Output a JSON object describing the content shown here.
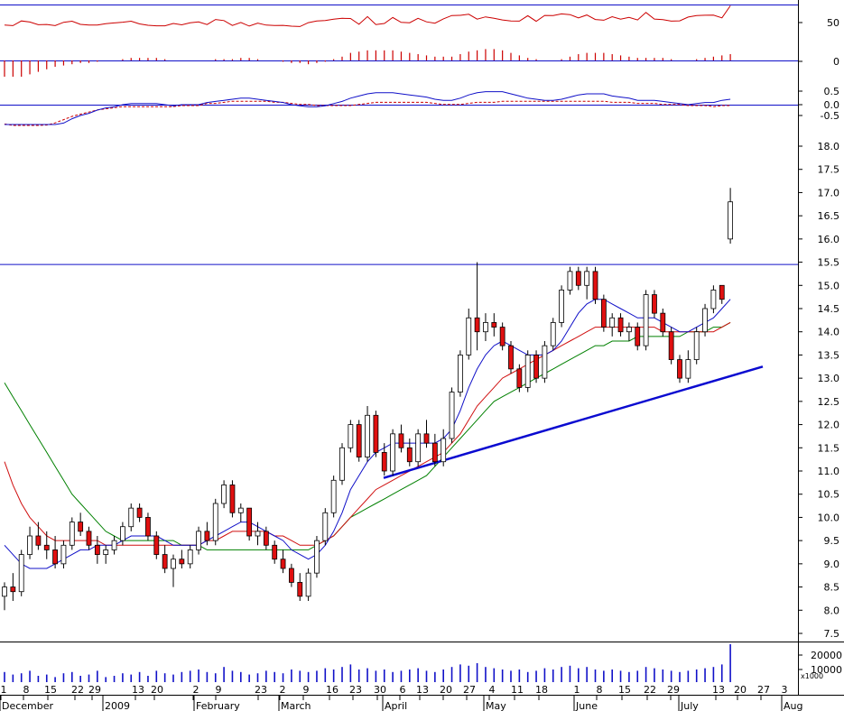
{
  "chart_data": {
    "type": "candlestick",
    "colors": {
      "up_fill": "#ffffff",
      "down_fill": "#e01010",
      "candle_outline": "#000000",
      "ma_short": "#1010c8",
      "ma_mid": "#d01010",
      "ma_long": "#008000",
      "trendline": "#0a0ad0",
      "resistance": "#1010c8",
      "rsi": "#cc0000",
      "macd_hist": "#cc0000",
      "macd_line": "#1010c8",
      "macd_signal": "#cc0000",
      "volume": "#1010c8"
    },
    "x_tick_labels": [
      {
        "label": "1",
        "row": "day"
      },
      {
        "label": "8",
        "row": "day"
      },
      {
        "label": "15",
        "row": "day"
      },
      {
        "label": "22",
        "row": "day"
      },
      {
        "label": "29",
        "row": "day"
      },
      {
        "label": "13",
        "row": "day"
      },
      {
        "label": "20",
        "row": "day"
      },
      {
        "label": "2",
        "row": "day"
      },
      {
        "label": "9",
        "row": "day"
      },
      {
        "label": "23",
        "row": "day"
      },
      {
        "label": "2",
        "row": "day"
      },
      {
        "label": "9",
        "row": "day"
      },
      {
        "label": "16",
        "row": "day"
      },
      {
        "label": "23",
        "row": "day"
      },
      {
        "label": "30",
        "row": "day"
      },
      {
        "label": "6",
        "row": "day"
      },
      {
        "label": "13",
        "row": "day"
      },
      {
        "label": "20",
        "row": "day"
      },
      {
        "label": "27",
        "row": "day"
      },
      {
        "label": "4",
        "row": "day"
      },
      {
        "label": "11",
        "row": "day"
      },
      {
        "label": "18",
        "row": "day"
      },
      {
        "label": "1",
        "row": "day"
      },
      {
        "label": "8",
        "row": "day"
      },
      {
        "label": "15",
        "row": "day"
      },
      {
        "label": "22",
        "row": "day"
      },
      {
        "label": "29",
        "row": "day"
      },
      {
        "label": "13",
        "row": "day"
      },
      {
        "label": "20",
        "row": "day"
      },
      {
        "label": "27",
        "row": "day"
      },
      {
        "label": "3",
        "row": "day"
      }
    ],
    "month_labels": [
      "December",
      "2009",
      "February",
      "March",
      "April",
      "May",
      "June",
      "July",
      "Aug"
    ],
    "price_ticks": [
      "18.0",
      "17.5",
      "17.0",
      "16.5",
      "16.0",
      "15.5",
      "15.0",
      "14.5",
      "14.0",
      "13.5",
      "13.0",
      "12.5",
      "12.0",
      "11.5",
      "11.0",
      "10.5",
      "10.0",
      "9.5",
      "9.0",
      "8.5",
      "8.0",
      "7.5"
    ],
    "price_ylim": [
      7.3,
      18.3
    ],
    "rsi_ticks": [
      "50",
      "0"
    ],
    "macd_ticks": [
      "0.5",
      "0.0",
      "-0.5"
    ],
    "volume_ticks": [
      "20000",
      "10000"
    ],
    "volume_unit": "x1000",
    "resistance_level": 15.45,
    "trendline": {
      "from": {
        "day": 0,
        "price": 10.85
      },
      "to": {
        "day": 87,
        "price": 13.25
      }
    },
    "candles": [
      {
        "o": 8.3,
        "h": 8.6,
        "l": 8.0,
        "c": 8.5
      },
      {
        "o": 8.5,
        "h": 8.8,
        "l": 8.2,
        "c": 8.4
      },
      {
        "o": 8.4,
        "h": 9.3,
        "l": 8.3,
        "c": 9.2
      },
      {
        "o": 9.2,
        "h": 9.8,
        "l": 9.1,
        "c": 9.6
      },
      {
        "o": 9.6,
        "h": 9.9,
        "l": 9.3,
        "c": 9.4
      },
      {
        "o": 9.4,
        "h": 9.7,
        "l": 9.1,
        "c": 9.3
      },
      {
        "o": 9.3,
        "h": 9.6,
        "l": 8.9,
        "c": 9.0
      },
      {
        "o": 9.0,
        "h": 9.5,
        "l": 8.9,
        "c": 9.4
      },
      {
        "o": 9.4,
        "h": 10.0,
        "l": 9.3,
        "c": 9.9
      },
      {
        "o": 9.9,
        "h": 10.1,
        "l": 9.6,
        "c": 9.7
      },
      {
        "o": 9.7,
        "h": 9.8,
        "l": 9.3,
        "c": 9.4
      },
      {
        "o": 9.4,
        "h": 9.6,
        "l": 9.0,
        "c": 9.2
      },
      {
        "o": 9.2,
        "h": 9.4,
        "l": 9.0,
        "c": 9.3
      },
      {
        "o": 9.3,
        "h": 9.6,
        "l": 9.2,
        "c": 9.5
      },
      {
        "o": 9.5,
        "h": 9.9,
        "l": 9.4,
        "c": 9.8
      },
      {
        "o": 9.8,
        "h": 10.3,
        "l": 9.7,
        "c": 10.2
      },
      {
        "o": 10.2,
        "h": 10.3,
        "l": 9.9,
        "c": 10.0
      },
      {
        "o": 10.0,
        "h": 10.1,
        "l": 9.5,
        "c": 9.6
      },
      {
        "o": 9.6,
        "h": 9.7,
        "l": 9.1,
        "c": 9.2
      },
      {
        "o": 9.2,
        "h": 9.4,
        "l": 8.8,
        "c": 8.9
      },
      {
        "o": 8.9,
        "h": 9.2,
        "l": 8.5,
        "c": 9.1
      },
      {
        "o": 9.1,
        "h": 9.3,
        "l": 8.9,
        "c": 9.0
      },
      {
        "o": 9.0,
        "h": 9.4,
        "l": 8.9,
        "c": 9.3
      },
      {
        "o": 9.3,
        "h": 9.8,
        "l": 9.2,
        "c": 9.7
      },
      {
        "o": 9.7,
        "h": 9.9,
        "l": 9.4,
        "c": 9.5
      },
      {
        "o": 9.5,
        "h": 10.4,
        "l": 9.4,
        "c": 10.3
      },
      {
        "o": 10.3,
        "h": 10.8,
        "l": 10.2,
        "c": 10.7
      },
      {
        "o": 10.7,
        "h": 10.8,
        "l": 10.0,
        "c": 10.1
      },
      {
        "o": 10.1,
        "h": 10.3,
        "l": 9.9,
        "c": 10.2
      },
      {
        "o": 10.2,
        "h": 10.2,
        "l": 9.5,
        "c": 9.6
      },
      {
        "o": 9.6,
        "h": 9.9,
        "l": 9.4,
        "c": 9.7
      },
      {
        "o": 9.7,
        "h": 9.8,
        "l": 9.3,
        "c": 9.4
      },
      {
        "o": 9.4,
        "h": 9.5,
        "l": 9.0,
        "c": 9.1
      },
      {
        "o": 9.1,
        "h": 9.3,
        "l": 8.8,
        "c": 8.9
      },
      {
        "o": 8.9,
        "h": 9.0,
        "l": 8.5,
        "c": 8.6
      },
      {
        "o": 8.6,
        "h": 8.8,
        "l": 8.2,
        "c": 8.3
      },
      {
        "o": 8.3,
        "h": 8.9,
        "l": 8.2,
        "c": 8.8
      },
      {
        "o": 8.8,
        "h": 9.6,
        "l": 8.7,
        "c": 9.5
      },
      {
        "o": 9.5,
        "h": 10.2,
        "l": 9.4,
        "c": 10.1
      },
      {
        "o": 10.1,
        "h": 10.9,
        "l": 10.0,
        "c": 10.8
      },
      {
        "o": 10.8,
        "h": 11.6,
        "l": 10.7,
        "c": 11.5
      },
      {
        "o": 11.5,
        "h": 12.1,
        "l": 11.4,
        "c": 12.0
      },
      {
        "o": 12.0,
        "h": 12.1,
        "l": 11.2,
        "c": 11.3
      },
      {
        "o": 11.3,
        "h": 12.4,
        "l": 11.2,
        "c": 12.2
      },
      {
        "o": 12.2,
        "h": 12.3,
        "l": 11.3,
        "c": 11.4
      },
      {
        "o": 11.4,
        "h": 11.6,
        "l": 10.9,
        "c": 11.0
      },
      {
        "o": 11.0,
        "h": 11.9,
        "l": 10.9,
        "c": 11.8
      },
      {
        "o": 11.8,
        "h": 12.0,
        "l": 11.4,
        "c": 11.5
      },
      {
        "o": 11.5,
        "h": 11.7,
        "l": 11.1,
        "c": 11.2
      },
      {
        "o": 11.2,
        "h": 11.9,
        "l": 11.1,
        "c": 11.8
      },
      {
        "o": 11.8,
        "h": 12.1,
        "l": 11.5,
        "c": 11.6
      },
      {
        "o": 11.6,
        "h": 11.8,
        "l": 11.1,
        "c": 11.2
      },
      {
        "o": 11.2,
        "h": 11.9,
        "l": 11.1,
        "c": 11.7
      },
      {
        "o": 11.7,
        "h": 12.8,
        "l": 11.6,
        "c": 12.7
      },
      {
        "o": 12.7,
        "h": 13.6,
        "l": 12.6,
        "c": 13.5
      },
      {
        "o": 13.5,
        "h": 14.5,
        "l": 13.4,
        "c": 14.3
      },
      {
        "o": 14.3,
        "h": 15.5,
        "l": 13.6,
        "c": 14.0
      },
      {
        "o": 14.0,
        "h": 14.4,
        "l": 13.8,
        "c": 14.2
      },
      {
        "o": 14.2,
        "h": 14.4,
        "l": 13.9,
        "c": 14.1
      },
      {
        "o": 14.1,
        "h": 14.2,
        "l": 13.6,
        "c": 13.7
      },
      {
        "o": 13.7,
        "h": 13.8,
        "l": 13.1,
        "c": 13.2
      },
      {
        "o": 13.2,
        "h": 13.3,
        "l": 12.7,
        "c": 12.8
      },
      {
        "o": 12.8,
        "h": 13.6,
        "l": 12.7,
        "c": 13.5
      },
      {
        "o": 13.5,
        "h": 13.6,
        "l": 12.9,
        "c": 13.0
      },
      {
        "o": 13.0,
        "h": 13.8,
        "l": 12.9,
        "c": 13.7
      },
      {
        "o": 13.7,
        "h": 14.3,
        "l": 13.6,
        "c": 14.2
      },
      {
        "o": 14.2,
        "h": 15.0,
        "l": 14.1,
        "c": 14.9
      },
      {
        "o": 14.9,
        "h": 15.4,
        "l": 14.8,
        "c": 15.3
      },
      {
        "o": 15.3,
        "h": 15.4,
        "l": 14.9,
        "c": 15.0
      },
      {
        "o": 15.0,
        "h": 15.4,
        "l": 14.7,
        "c": 15.3
      },
      {
        "o": 15.3,
        "h": 15.4,
        "l": 14.6,
        "c": 14.7
      },
      {
        "o": 14.7,
        "h": 14.8,
        "l": 14.0,
        "c": 14.1
      },
      {
        "o": 14.1,
        "h": 14.4,
        "l": 13.9,
        "c": 14.3
      },
      {
        "o": 14.3,
        "h": 14.4,
        "l": 13.9,
        "c": 14.0
      },
      {
        "o": 14.0,
        "h": 14.2,
        "l": 13.8,
        "c": 14.1
      },
      {
        "o": 14.1,
        "h": 14.2,
        "l": 13.6,
        "c": 13.7
      },
      {
        "o": 13.7,
        "h": 14.9,
        "l": 13.6,
        "c": 14.8
      },
      {
        "o": 14.8,
        "h": 14.9,
        "l": 14.3,
        "c": 14.4
      },
      {
        "o": 14.4,
        "h": 14.5,
        "l": 13.9,
        "c": 14.0
      },
      {
        "o": 14.0,
        "h": 14.1,
        "l": 13.3,
        "c": 13.4
      },
      {
        "o": 13.4,
        "h": 13.5,
        "l": 12.9,
        "c": 13.0
      },
      {
        "o": 13.0,
        "h": 13.6,
        "l": 12.9,
        "c": 13.4
      },
      {
        "o": 13.4,
        "h": 14.1,
        "l": 13.3,
        "c": 14.0
      },
      {
        "o": 14.0,
        "h": 14.6,
        "l": 13.9,
        "c": 14.5
      },
      {
        "o": 14.5,
        "h": 15.0,
        "l": 14.4,
        "c": 14.9
      },
      {
        "o": 15.0,
        "h": 15.0,
        "l": 14.6,
        "c": 14.7
      },
      {
        "o": 16.0,
        "h": 17.1,
        "l": 15.9,
        "c": 16.8
      }
    ],
    "ma_short": [
      9.4,
      9.2,
      9.0,
      8.9,
      8.9,
      8.9,
      9.0,
      9.1,
      9.2,
      9.3,
      9.3,
      9.4,
      9.4,
      9.4,
      9.5,
      9.6,
      9.6,
      9.6,
      9.6,
      9.5,
      9.4,
      9.4,
      9.4,
      9.4,
      9.5,
      9.6,
      9.7,
      9.8,
      9.9,
      9.9,
      9.8,
      9.7,
      9.6,
      9.5,
      9.3,
      9.2,
      9.1,
      9.2,
      9.4,
      9.7,
      10.1,
      10.6,
      10.9,
      11.2,
      11.4,
      11.5,
      11.6,
      11.6,
      11.6,
      11.6,
      11.6,
      11.6,
      11.7,
      11.9,
      12.3,
      12.8,
      13.2,
      13.5,
      13.7,
      13.8,
      13.7,
      13.6,
      13.5,
      13.5,
      13.5,
      13.6,
      13.8,
      14.1,
      14.4,
      14.6,
      14.7,
      14.7,
      14.6,
      14.5,
      14.4,
      14.3,
      14.3,
      14.3,
      14.2,
      14.1,
      14.0,
      14.0,
      14.1,
      14.2,
      14.3,
      14.5,
      14.7
    ],
    "ma_mid": [
      11.2,
      10.7,
      10.3,
      10.0,
      9.8,
      9.6,
      9.5,
      9.5,
      9.5,
      9.5,
      9.5,
      9.5,
      9.4,
      9.4,
      9.4,
      9.4,
      9.4,
      9.4,
      9.4,
      9.4,
      9.4,
      9.4,
      9.4,
      9.4,
      9.5,
      9.5,
      9.6,
      9.7,
      9.7,
      9.7,
      9.7,
      9.7,
      9.6,
      9.6,
      9.5,
      9.4,
      9.4,
      9.4,
      9.5,
      9.6,
      9.8,
      10.0,
      10.2,
      10.4,
      10.6,
      10.7,
      10.8,
      10.9,
      11.0,
      11.1,
      11.2,
      11.3,
      11.4,
      11.6,
      11.8,
      12.1,
      12.4,
      12.6,
      12.8,
      13.0,
      13.1,
      13.2,
      13.3,
      13.4,
      13.5,
      13.6,
      13.7,
      13.8,
      13.9,
      14.0,
      14.1,
      14.1,
      14.1,
      14.1,
      14.1,
      14.1,
      14.1,
      14.1,
      14.0,
      14.0,
      14.0,
      14.0,
      14.0,
      14.0,
      14.0,
      14.1,
      14.2
    ],
    "ma_long": [
      12.9,
      12.6,
      12.3,
      12.0,
      11.7,
      11.4,
      11.1,
      10.8,
      10.5,
      10.3,
      10.1,
      9.9,
      9.7,
      9.6,
      9.5,
      9.5,
      9.5,
      9.5,
      9.5,
      9.5,
      9.5,
      9.4,
      9.4,
      9.4,
      9.3,
      9.3,
      9.3,
      9.3,
      9.3,
      9.3,
      9.3,
      9.3,
      9.3,
      9.3,
      9.3,
      9.3,
      9.3,
      9.4,
      9.5,
      9.6,
      9.8,
      10.0,
      10.1,
      10.2,
      10.3,
      10.4,
      10.5,
      10.6,
      10.7,
      10.8,
      10.9,
      11.1,
      11.3,
      11.5,
      11.7,
      11.9,
      12.1,
      12.3,
      12.5,
      12.6,
      12.7,
      12.8,
      12.9,
      13.0,
      13.1,
      13.2,
      13.3,
      13.4,
      13.5,
      13.6,
      13.7,
      13.7,
      13.8,
      13.8,
      13.8,
      13.9,
      13.9,
      13.9,
      13.9,
      13.9,
      13.9,
      14.0,
      14.0,
      14.0,
      14.1,
      14.1,
      14.2
    ],
    "volume": [
      8000,
      6000,
      7000,
      9000,
      5000,
      6000,
      4000,
      7000,
      8000,
      5000,
      6000,
      9000,
      4000,
      5000,
      7000,
      6000,
      8000,
      5000,
      9000,
      7000,
      6000,
      8000,
      9000,
      10000,
      8000,
      7000,
      12000,
      9000,
      8000,
      6000,
      7000,
      9000,
      8000,
      7000,
      10000,
      9000,
      8000,
      9000,
      11000,
      10000,
      12000,
      14000,
      10000,
      11000,
      9000,
      10000,
      8000,
      9000,
      10000,
      11000,
      9000,
      8000,
      10000,
      12000,
      14000,
      13000,
      15000,
      12000,
      11000,
      10000,
      9000,
      10000,
      8000,
      9000,
      11000,
      10000,
      12000,
      13000,
      11000,
      12000,
      10000,
      9000,
      10000,
      9000,
      8000,
      9000,
      12000,
      11000,
      10000,
      9000,
      8000,
      9000,
      10000,
      11000,
      12000,
      14000,
      30000
    ]
  }
}
